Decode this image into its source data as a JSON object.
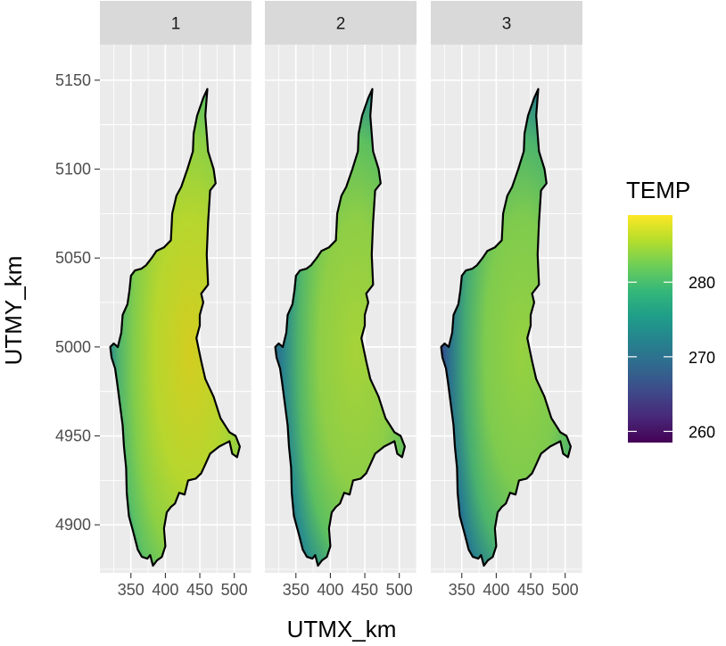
{
  "chart_data": {
    "type": "heatmap",
    "title": "",
    "xlabel": "UTMX_km",
    "ylabel": "UTMY_km",
    "panels": [
      {
        "label": "1",
        "colors": {
          "core": "#d4cd20",
          "mid": "#b6d62e",
          "edge": "#8dd044",
          "edge2": "#5cc064",
          "dark": "#2f8e8a"
        }
      },
      {
        "label": "2",
        "colors": {
          "core": "#a6d338",
          "mid": "#8ece46",
          "edge": "#5cbf60",
          "edge2": "#2a8f8c",
          "dark": "#2c6a8e"
        }
      },
      {
        "label": "3",
        "colors": {
          "core": "#96d140",
          "mid": "#7fcb4e",
          "edge": "#4cb46c",
          "edge2": "#277f8e",
          "dark": "#36498c"
        }
      }
    ],
    "x_ticks": [
      350,
      400,
      450,
      500
    ],
    "x_tick_labels": [
      "350",
      "400",
      "450",
      "500"
    ],
    "xlim": [
      305,
      525
    ],
    "y_ticks": [
      4900,
      4950,
      5000,
      5050,
      5100,
      5150
    ],
    "y_tick_labels": [
      "4900",
      "4950",
      "5000",
      "5050",
      "5100",
      "5150"
    ],
    "ylim": [
      4873,
      5170
    ],
    "boundary": [
      [
        461,
        5145
      ],
      [
        458,
        5130
      ],
      [
        462,
        5110
      ],
      [
        470,
        5100
      ],
      [
        473,
        5092
      ],
      [
        465,
        5088
      ],
      [
        462,
        5070
      ],
      [
        460,
        5052
      ],
      [
        462,
        5035
      ],
      [
        452,
        5030
      ],
      [
        455,
        5025
      ],
      [
        450,
        5018
      ],
      [
        450,
        5012
      ],
      [
        445,
        5005
      ],
      [
        452,
        4992
      ],
      [
        458,
        4982
      ],
      [
        470,
        4972
      ],
      [
        480,
        4960
      ],
      [
        493,
        4952
      ],
      [
        502,
        4950
      ],
      [
        508,
        4944
      ],
      [
        504,
        4938
      ],
      [
        497,
        4940
      ],
      [
        493,
        4947
      ],
      [
        478,
        4944
      ],
      [
        465,
        4940
      ],
      [
        458,
        4934
      ],
      [
        452,
        4929
      ],
      [
        444,
        4926
      ],
      [
        433,
        4925
      ],
      [
        428,
        4917
      ],
      [
        420,
        4918
      ],
      [
        414,
        4912
      ],
      [
        408,
        4910
      ],
      [
        402,
        4907
      ],
      [
        398,
        4898
      ],
      [
        400,
        4888
      ],
      [
        395,
        4882
      ],
      [
        388,
        4880
      ],
      [
        382,
        4877
      ],
      [
        378,
        4883
      ],
      [
        374,
        4881
      ],
      [
        366,
        4882
      ],
      [
        360,
        4886
      ],
      [
        354,
        4895
      ],
      [
        347,
        4905
      ],
      [
        344,
        4918
      ],
      [
        343,
        4932
      ],
      [
        340,
        4944
      ],
      [
        338,
        4956
      ],
      [
        334,
        4968
      ],
      [
        330,
        4980
      ],
      [
        327,
        4988
      ],
      [
        322,
        4994
      ],
      [
        320,
        5000
      ],
      [
        325,
        5002
      ],
      [
        331,
        5000
      ],
      [
        336,
        5008
      ],
      [
        338,
        5018
      ],
      [
        345,
        5024
      ],
      [
        348,
        5032
      ],
      [
        350,
        5040
      ],
      [
        356,
        5043
      ],
      [
        365,
        5044
      ],
      [
        372,
        5046
      ],
      [
        380,
        5050
      ],
      [
        387,
        5054
      ],
      [
        398,
        5056
      ],
      [
        408,
        5060
      ],
      [
        410,
        5075
      ],
      [
        416,
        5085
      ],
      [
        423,
        5090
      ],
      [
        432,
        5100
      ],
      [
        440,
        5110
      ],
      [
        441,
        5120
      ],
      [
        446,
        5130
      ],
      [
        455,
        5140
      ],
      [
        461,
        5145
      ]
    ],
    "colorbar": {
      "title": "TEMP",
      "ticks": [
        260,
        270,
        280
      ],
      "tick_labels": [
        "260",
        "270",
        "280"
      ],
      "range": [
        258.5,
        289
      ],
      "stops": [
        "#440154",
        "#482878",
        "#3e4989",
        "#31688e",
        "#26828e",
        "#1f9e89",
        "#35b779",
        "#6ece58",
        "#b5de2b",
        "#fde725"
      ]
    }
  }
}
